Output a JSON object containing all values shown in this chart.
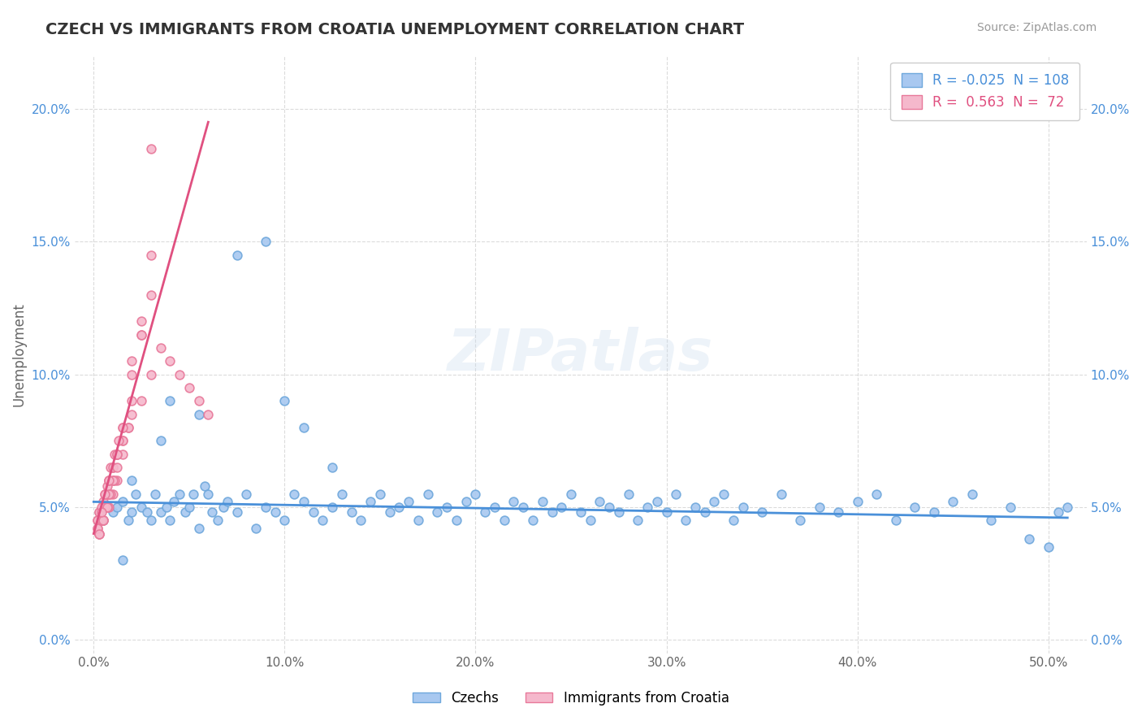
{
  "title": "CZECH VS IMMIGRANTS FROM CROATIA UNEMPLOYMENT CORRELATION CHART",
  "source": "Source: ZipAtlas.com",
  "xlabel_ticks": [
    "0.0%",
    "10.0%",
    "20.0%",
    "30.0%",
    "40.0%",
    "50.0%"
  ],
  "xlabel_vals": [
    0,
    10,
    20,
    30,
    40,
    50
  ],
  "ylabel_ticks": [
    "0.0%",
    "5.0%",
    "10.0%",
    "15.0%",
    "20.0%"
  ],
  "ylabel_vals": [
    0,
    5,
    10,
    15,
    20
  ],
  "xlim": [
    -1,
    52
  ],
  "ylim": [
    -0.5,
    22
  ],
  "ylabel": "Unemployment",
  "legend_entries": [
    {
      "label": "R = -0.025  N = 108",
      "color": "#a8c8f0"
    },
    {
      "label": "R =  0.563  N =  72",
      "color": "#f0a0b8"
    }
  ],
  "series_czech": {
    "color": "#a8c8f0",
    "edge_color": "#6fa8dc",
    "R": -0.025,
    "N": 108,
    "x": [
      0.5,
      1.0,
      1.2,
      1.5,
      1.8,
      2.0,
      2.2,
      2.5,
      2.8,
      3.0,
      3.2,
      3.5,
      3.8,
      4.0,
      4.2,
      4.5,
      4.8,
      5.0,
      5.2,
      5.5,
      5.8,
      6.0,
      6.2,
      6.5,
      6.8,
      7.0,
      7.5,
      8.0,
      8.5,
      9.0,
      9.5,
      10.0,
      10.5,
      11.0,
      11.5,
      12.0,
      12.5,
      13.0,
      13.5,
      14.0,
      14.5,
      15.0,
      15.5,
      16.0,
      16.5,
      17.0,
      17.5,
      18.0,
      18.5,
      19.0,
      19.5,
      20.0,
      20.5,
      21.0,
      21.5,
      22.0,
      22.5,
      23.0,
      23.5,
      24.0,
      24.5,
      25.0,
      25.5,
      26.0,
      26.5,
      27.0,
      27.5,
      28.0,
      28.5,
      29.0,
      29.5,
      30.0,
      30.5,
      31.0,
      31.5,
      32.0,
      32.5,
      33.0,
      33.5,
      34.0,
      35.0,
      36.0,
      37.0,
      38.0,
      39.0,
      40.0,
      41.0,
      42.0,
      43.0,
      44.0,
      45.0,
      46.0,
      47.0,
      48.0,
      49.0,
      50.0,
      50.5,
      51.0,
      4.0,
      3.5,
      2.0,
      1.5,
      5.5,
      7.5,
      9.0,
      10.0,
      11.0,
      12.5
    ],
    "y": [
      4.5,
      4.8,
      5.0,
      5.2,
      4.5,
      4.8,
      5.5,
      5.0,
      4.8,
      4.5,
      5.5,
      4.8,
      5.0,
      4.5,
      5.2,
      5.5,
      4.8,
      5.0,
      5.5,
      4.2,
      5.8,
      5.5,
      4.8,
      4.5,
      5.0,
      5.2,
      4.8,
      5.5,
      4.2,
      5.0,
      4.8,
      4.5,
      5.5,
      5.2,
      4.8,
      4.5,
      5.0,
      5.5,
      4.8,
      4.5,
      5.2,
      5.5,
      4.8,
      5.0,
      5.2,
      4.5,
      5.5,
      4.8,
      5.0,
      4.5,
      5.2,
      5.5,
      4.8,
      5.0,
      4.5,
      5.2,
      5.0,
      4.5,
      5.2,
      4.8,
      5.0,
      5.5,
      4.8,
      4.5,
      5.2,
      5.0,
      4.8,
      5.5,
      4.5,
      5.0,
      5.2,
      4.8,
      5.5,
      4.5,
      5.0,
      4.8,
      5.2,
      5.5,
      4.5,
      5.0,
      4.8,
      5.5,
      4.5,
      5.0,
      4.8,
      5.2,
      5.5,
      4.5,
      5.0,
      4.8,
      5.2,
      5.5,
      4.5,
      5.0,
      3.8,
      3.5,
      4.8,
      5.0,
      9.0,
      7.5,
      6.0,
      3.0,
      8.5,
      14.5,
      15.0,
      9.0,
      8.0,
      6.5
    ]
  },
  "series_croatia": {
    "color": "#f5b8cc",
    "edge_color": "#e8799a",
    "R": 0.563,
    "N": 72,
    "x": [
      0.2,
      0.3,
      0.5,
      0.7,
      0.8,
      1.0,
      1.2,
      1.5,
      1.8,
      2.0,
      2.5,
      3.0,
      3.5,
      4.0,
      4.5,
      5.0,
      5.5,
      6.0,
      0.3,
      0.5,
      0.8,
      1.0,
      1.2,
      1.5,
      0.2,
      0.4,
      0.6,
      0.8,
      1.0,
      1.5,
      2.0,
      0.3,
      0.5,
      0.7,
      0.9,
      1.1,
      1.3,
      2.5,
      3.0,
      0.2,
      0.4,
      0.6,
      0.8,
      1.0,
      1.2,
      0.3,
      0.5,
      0.7,
      0.9,
      1.1,
      0.2,
      0.4,
      0.6,
      0.8,
      1.0,
      1.5,
      2.0,
      0.3,
      0.5,
      0.7,
      1.2,
      1.8,
      2.5,
      3.0,
      0.4,
      0.6,
      0.8,
      1.2,
      1.5,
      2.0,
      2.5,
      3.0
    ],
    "y": [
      4.5,
      4.8,
      5.0,
      5.5,
      6.0,
      6.5,
      7.0,
      7.5,
      8.0,
      8.5,
      9.0,
      10.0,
      11.0,
      10.5,
      10.0,
      9.5,
      9.0,
      8.5,
      4.0,
      4.5,
      5.0,
      5.5,
      6.0,
      7.0,
      4.2,
      4.5,
      5.0,
      5.5,
      6.0,
      7.5,
      9.0,
      4.8,
      5.2,
      5.8,
      6.5,
      7.0,
      7.5,
      12.0,
      18.5,
      4.5,
      5.0,
      5.5,
      6.0,
      6.5,
      7.0,
      4.0,
      4.5,
      5.0,
      5.5,
      6.0,
      4.2,
      4.5,
      5.0,
      5.5,
      6.0,
      8.0,
      10.5,
      4.0,
      4.5,
      5.0,
      6.5,
      8.0,
      11.5,
      14.5,
      4.8,
      5.5,
      6.0,
      7.0,
      8.0,
      10.0,
      11.5,
      13.0
    ]
  },
  "trendline_czech": {
    "color": "#4a90d9",
    "x_start": 0,
    "x_end": 51,
    "y_start": 5.2,
    "y_end": 4.6
  },
  "trendline_croatia": {
    "color": "#e05080",
    "x_start": 0,
    "x_end": 6,
    "y_start": 4.0,
    "y_end": 19.5
  },
  "watermark": "ZIPatlas",
  "grid_color": "#cccccc",
  "bg_color": "#ffffff",
  "title_color": "#333333",
  "source_color": "#999999",
  "axis_label_color": "#666666"
}
